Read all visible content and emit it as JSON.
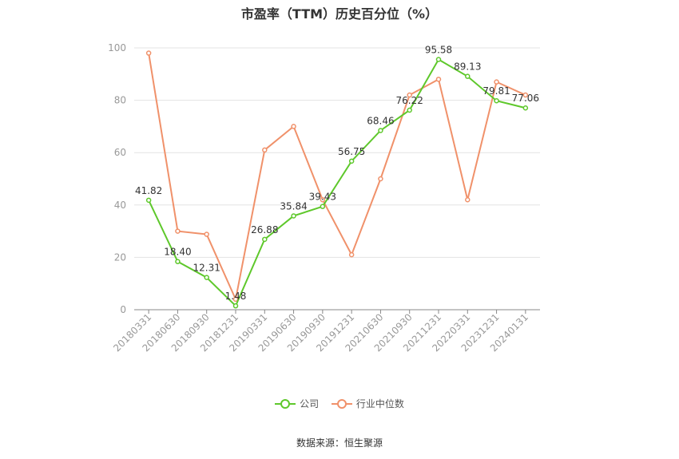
{
  "chart_data": {
    "type": "line",
    "title": "市盈率（TTM）历史百分位（%）",
    "categories": [
      "20180331",
      "20180630",
      "20180930",
      "20181231",
      "20190331",
      "20190630",
      "20190930",
      "20191231",
      "20210630",
      "20210930",
      "20211231",
      "20220331",
      "20231231",
      "20240131"
    ],
    "series": [
      {
        "name": "公司",
        "color": "#5ec82b",
        "values": [
          41.82,
          18.4,
          12.31,
          1.48,
          26.88,
          35.84,
          39.43,
          56.75,
          68.46,
          76.22,
          95.58,
          89.13,
          79.81,
          77.06
        ],
        "labels": [
          "41.82",
          "18.40",
          "12.31",
          "1.48",
          "26.88",
          "35.84",
          "39.43",
          "56.75",
          "68.46",
          "76.22",
          "95.58",
          "89.13",
          "79.81",
          "77.06"
        ]
      },
      {
        "name": "行业中位数",
        "color": "#f0916a",
        "values": [
          98.0,
          30.0,
          28.8,
          4.0,
          61.0,
          70.0,
          42.0,
          21.0,
          50.0,
          82.0,
          88.0,
          42.0,
          87.0,
          82.0
        ]
      }
    ],
    "ylim": [
      0,
      100
    ],
    "yticks": [
      0,
      20,
      40,
      60,
      80,
      100
    ],
    "grid": true,
    "legend_position": "bottom"
  },
  "source": "数据来源：恒生聚源"
}
